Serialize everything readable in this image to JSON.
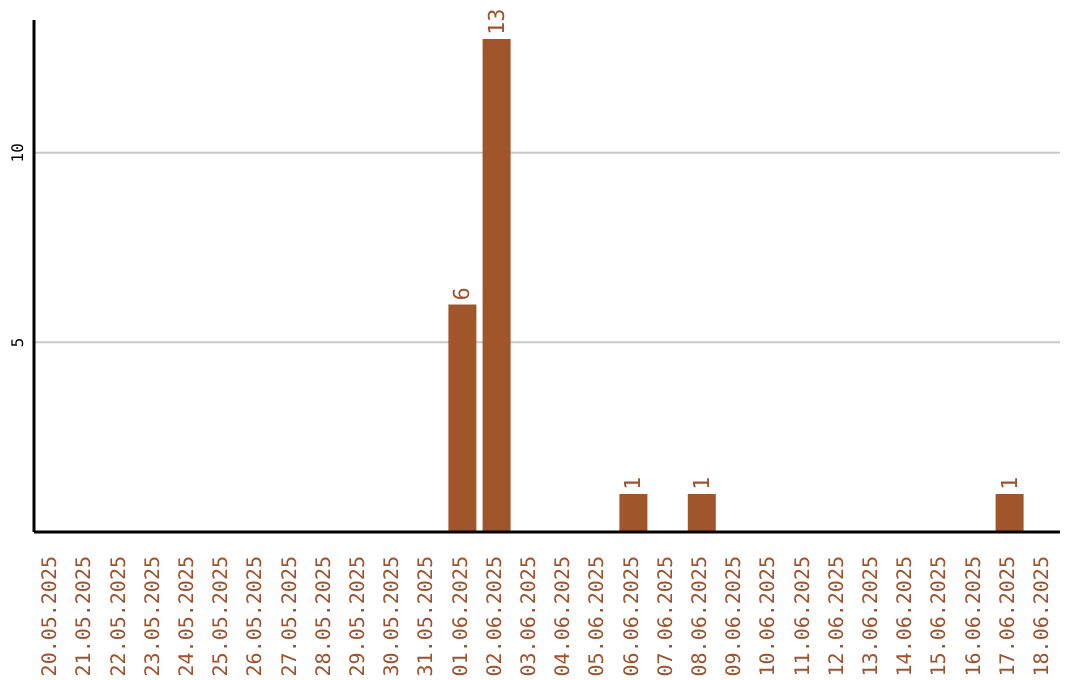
{
  "chart_data": {
    "type": "bar",
    "categories": [
      "20.05.2025",
      "21.05.2025",
      "22.05.2025",
      "23.05.2025",
      "24.05.2025",
      "25.05.2025",
      "26.05.2025",
      "27.05.2025",
      "28.05.2025",
      "29.05.2025",
      "30.05.2025",
      "31.05.2025",
      "01.06.2025",
      "02.06.2025",
      "03.06.2025",
      "04.06.2025",
      "05.06.2025",
      "06.06.2025",
      "07.06.2025",
      "08.06.2025",
      "09.06.2025",
      "10.06.2025",
      "11.06.2025",
      "12.06.2025",
      "13.06.2025",
      "14.06.2025",
      "15.06.2025",
      "16.06.2025",
      "17.06.2025",
      "18.06.2025"
    ],
    "values": [
      0,
      0,
      0,
      0,
      0,
      0,
      0,
      0,
      0,
      0,
      0,
      0,
      6,
      13,
      0,
      0,
      0,
      1,
      0,
      1,
      0,
      0,
      0,
      0,
      0,
      0,
      0,
      0,
      1,
      0
    ],
    "value_labels": [
      null,
      null,
      null,
      null,
      null,
      null,
      null,
      null,
      null,
      null,
      null,
      null,
      "6",
      "13",
      null,
      null,
      null,
      "1",
      null,
      "1",
      null,
      null,
      null,
      null,
      null,
      null,
      null,
      null,
      "1",
      null
    ],
    "color": "#a0562a",
    "ylim": [
      0,
      13.5
    ],
    "yticks": [
      5,
      10
    ],
    "grid": "y"
  }
}
